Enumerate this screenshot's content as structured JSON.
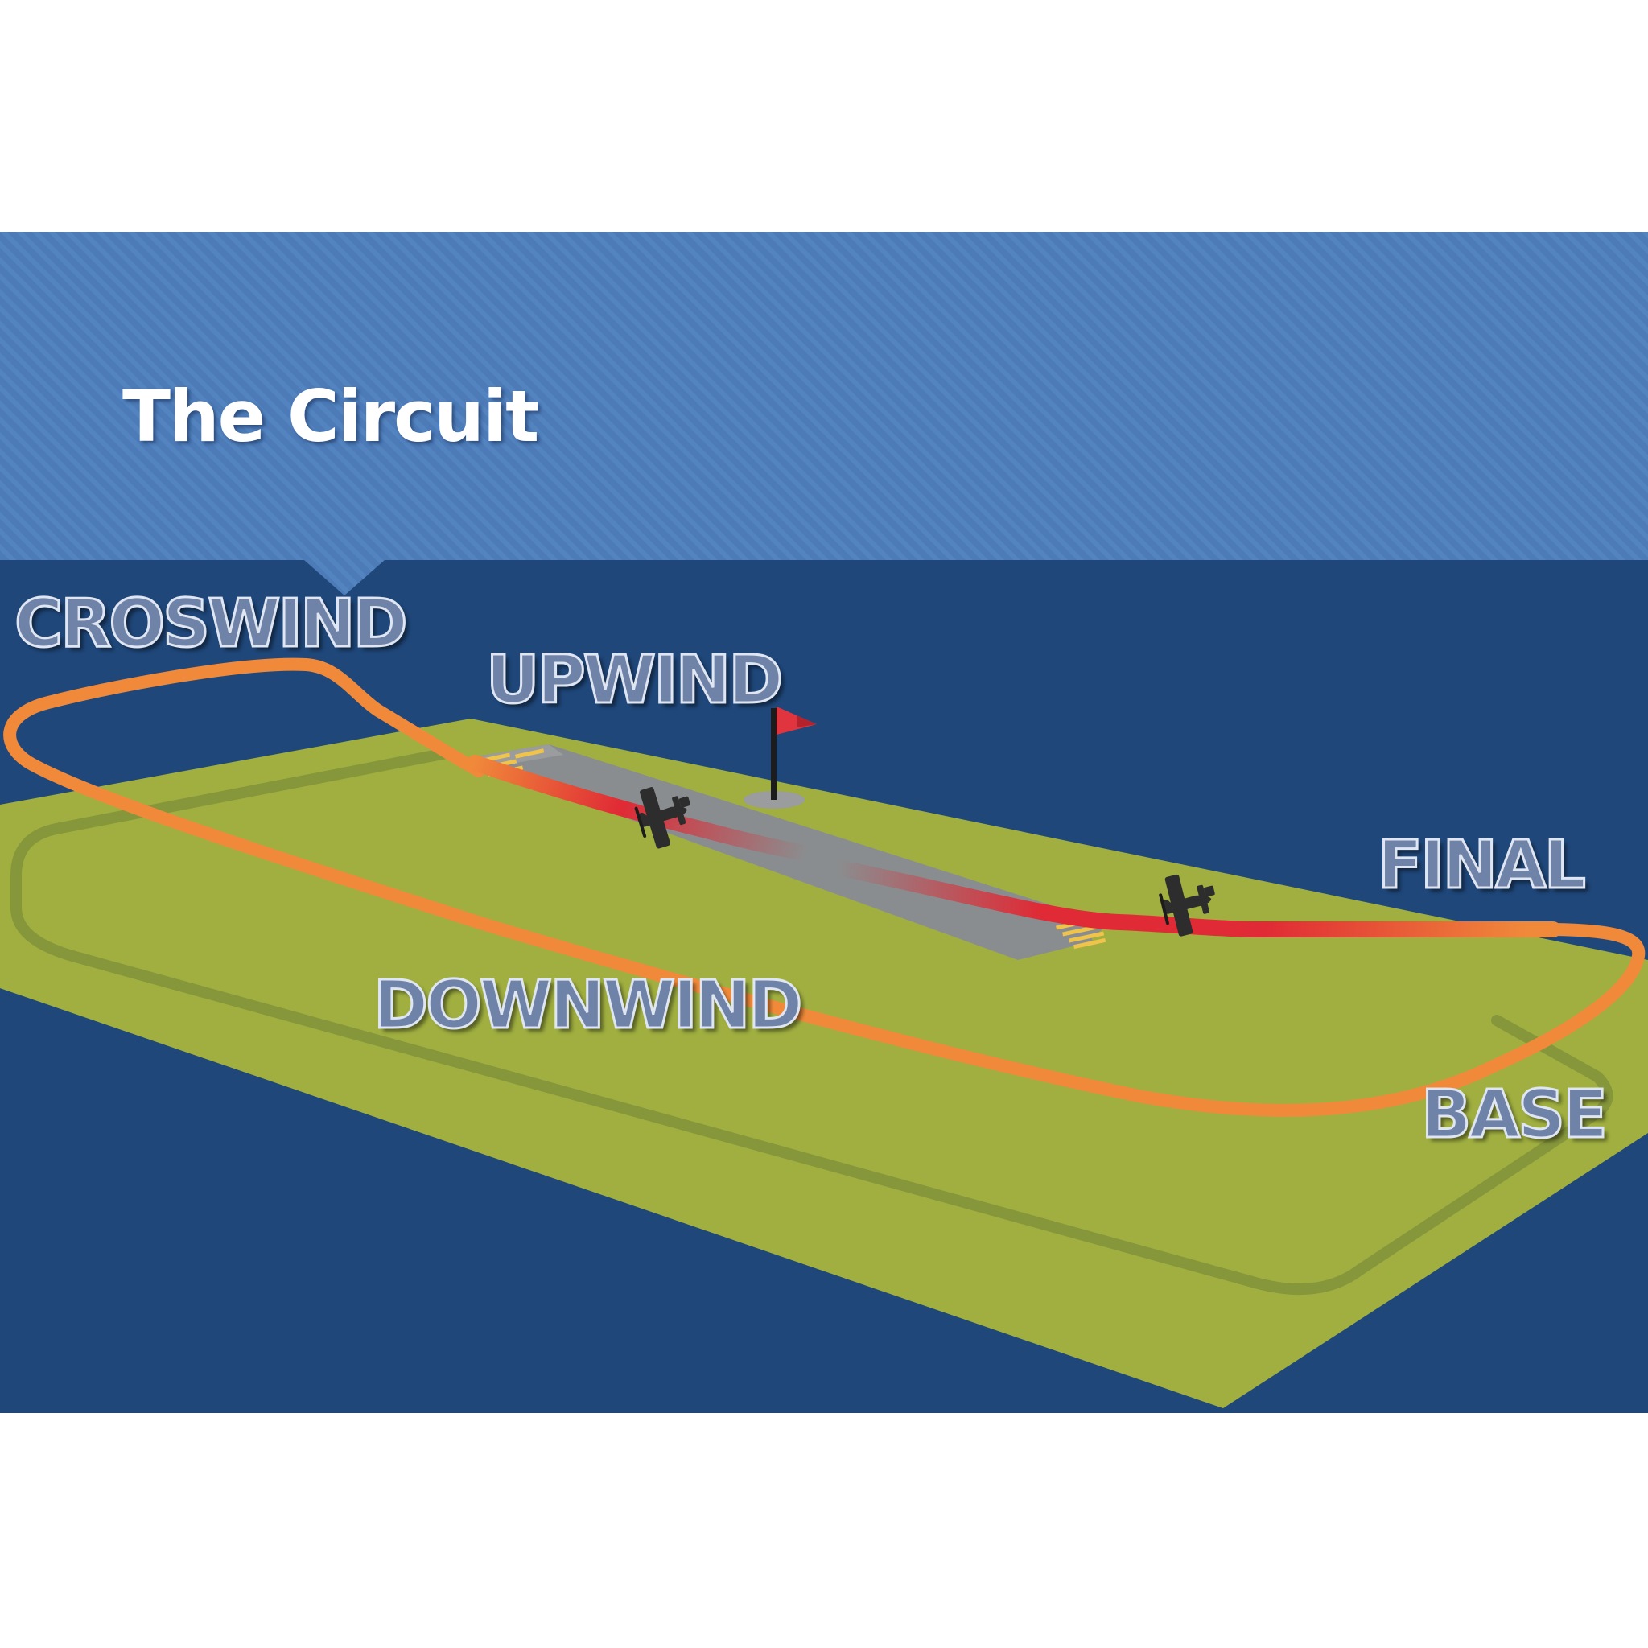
{
  "slide": {
    "title": "The Circuit"
  },
  "diagram": {
    "legs": {
      "crosswind": "CROSWIND",
      "upwind": "UPWIND",
      "downwind": "DOWNWIND",
      "final": "FINAL",
      "base": "BASE"
    }
  },
  "colors": {
    "header_band": "#4c7bb8",
    "background": "#1f477a",
    "grass": "#a0af40",
    "grass_side": "#8c9a36",
    "runway": "#8a8d8f",
    "circuit_path": "#f08a3a",
    "flight_path_low": "#e02a35",
    "flag": "#e0353f",
    "aircraft": "#2d2d2d"
  },
  "icons": {
    "aircraft": "airplane-icon",
    "windsock": "flag-icon"
  }
}
